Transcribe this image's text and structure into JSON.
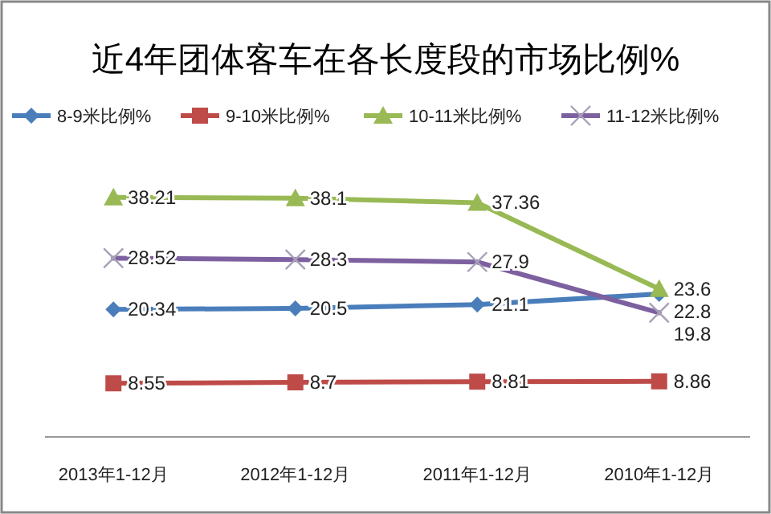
{
  "chart_data": {
    "type": "line",
    "title": "近4年团体客车在各长度段的市场比例%",
    "categories": [
      "2013年1-12月",
      "2012年1-12月",
      "2011年1-12月",
      "2010年1-12月"
    ],
    "series": [
      {
        "name": "8-9米比例%",
        "color": "#4a7ebb",
        "marker": "diamond",
        "values": [
          20.34,
          20.5,
          21.1,
          22.8
        ]
      },
      {
        "name": "9-10米比例%",
        "color": "#be4b48",
        "marker": "square",
        "values": [
          8.55,
          8.7,
          8.81,
          8.86
        ]
      },
      {
        "name": "10-11米比例%",
        "color": "#98b954",
        "marker": "triangle",
        "values": [
          38.21,
          38.1,
          37.36,
          23.6
        ]
      },
      {
        "name": "11-12米比例%",
        "color": "#7d60a0",
        "marker": "cross",
        "values": [
          28.52,
          28.3,
          27.9,
          19.8
        ]
      }
    ],
    "data_labels": true,
    "legend": "top",
    "grid": false
  }
}
